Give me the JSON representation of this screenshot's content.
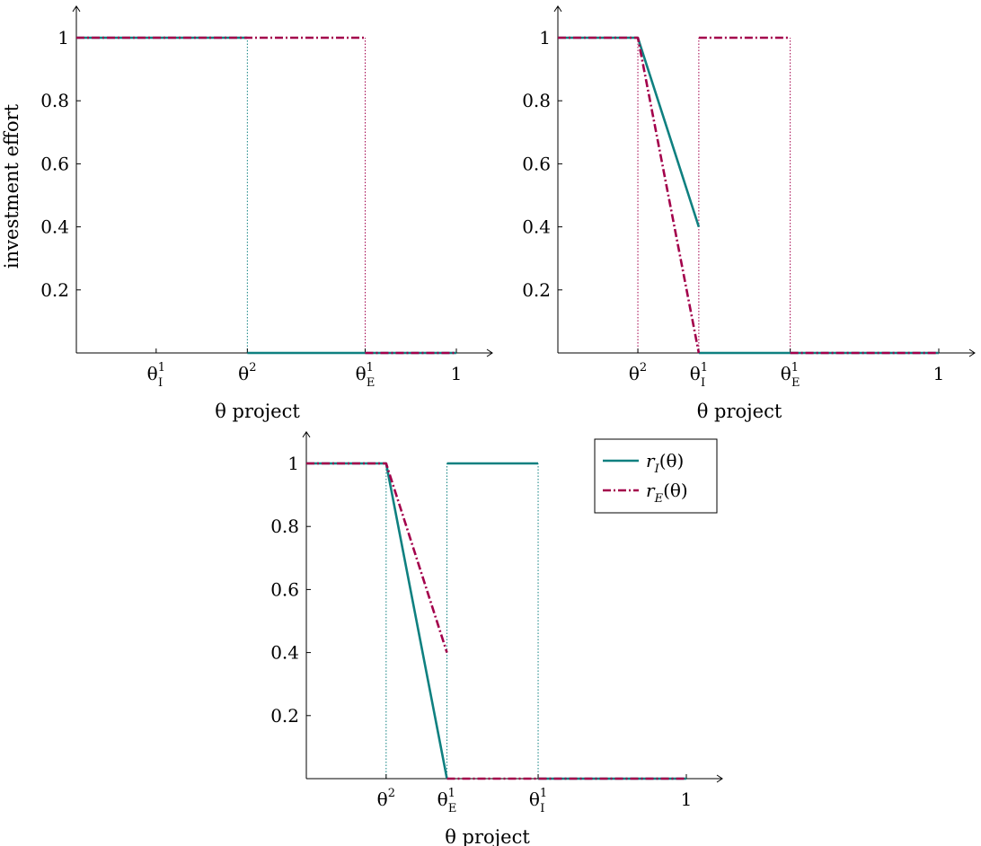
{
  "colors": {
    "rI": "#0f8080",
    "rE": "#a3004b",
    "axis": "#000000"
  },
  "legend": {
    "entries": [
      {
        "series": "rI",
        "label": "r",
        "sub": "I",
        "tail": "(θ)"
      },
      {
        "series": "rE",
        "label": "r",
        "sub": "E",
        "tail": "(θ)"
      }
    ]
  },
  "chart_data": [
    {
      "type": "line",
      "xlabel": "θ project",
      "ylabel": "investment effort",
      "ylim": [
        0,
        1.1
      ],
      "xlim": [
        0,
        1
      ],
      "yticks": [
        "0.2",
        "0.4",
        "0.6",
        "0.8",
        "1"
      ],
      "ytick_values": [
        0.2,
        0.4,
        0.6,
        0.8,
        1
      ],
      "xticks": [
        {
          "x": 0.21,
          "base": "θ",
          "sup": "1",
          "sub": "I"
        },
        {
          "x": 0.45,
          "base": "θ",
          "sup": "2",
          "sub": ""
        },
        {
          "x": 0.76,
          "base": "θ",
          "sup": "1",
          "sub": "E"
        },
        {
          "x": 1.0,
          "base": "1",
          "sup": "",
          "sub": ""
        }
      ],
      "guides": [
        {
          "series": "rI",
          "x": 0.45,
          "y": 1
        },
        {
          "series": "rE",
          "x": 0.76,
          "y": 1
        }
      ],
      "series": [
        {
          "key": "rI",
          "segments": [
            [
              [
                0,
                1
              ],
              [
                0.45,
                1
              ]
            ],
            [
              [
                0.45,
                0
              ],
              [
                1,
                0
              ]
            ]
          ]
        },
        {
          "key": "rE",
          "segments": [
            [
              [
                0,
                1
              ],
              [
                0.76,
                1
              ]
            ],
            [
              [
                0.76,
                0
              ],
              [
                1,
                0
              ]
            ]
          ]
        }
      ]
    },
    {
      "type": "line",
      "xlabel": "θ project",
      "ylabel": "",
      "ylim": [
        0,
        1.1
      ],
      "xlim": [
        0,
        1
      ],
      "yticks": [
        "0.2",
        "0.4",
        "0.6",
        "0.8",
        "1"
      ],
      "ytick_values": [
        0.2,
        0.4,
        0.6,
        0.8,
        1
      ],
      "xticks": [
        {
          "x": 0.21,
          "base": "θ",
          "sup": "2",
          "sub": ""
        },
        {
          "x": 0.37,
          "base": "θ",
          "sup": "1",
          "sub": "I"
        },
        {
          "x": 0.61,
          "base": "θ",
          "sup": "1",
          "sub": "E"
        },
        {
          "x": 1.0,
          "base": "1",
          "sup": "",
          "sub": ""
        }
      ],
      "guides": [
        {
          "series": "rE",
          "x": 0.21,
          "y": 1
        },
        {
          "series": "rE",
          "x": 0.37,
          "y": 1
        },
        {
          "series": "rE",
          "x": 0.61,
          "y": 1
        }
      ],
      "series": [
        {
          "key": "rI",
          "segments": [
            [
              [
                0,
                1
              ],
              [
                0.21,
                1
              ],
              [
                0.37,
                0.4
              ]
            ],
            [
              [
                0.37,
                0
              ],
              [
                1,
                0
              ]
            ]
          ]
        },
        {
          "key": "rE",
          "segments": [
            [
              [
                0,
                1
              ],
              [
                0.21,
                1
              ],
              [
                0.37,
                0
              ]
            ],
            [
              [
                0.37,
                1
              ],
              [
                0.61,
                1
              ]
            ],
            [
              [
                0.61,
                0
              ],
              [
                1,
                0
              ]
            ]
          ]
        }
      ]
    },
    {
      "type": "line",
      "xlabel": "θ project",
      "ylabel": "",
      "ylim": [
        0,
        1.1
      ],
      "xlim": [
        0,
        1
      ],
      "yticks": [
        "0.2",
        "0.4",
        "0.6",
        "0.8",
        "1"
      ],
      "ytick_values": [
        0.2,
        0.4,
        0.6,
        0.8,
        1
      ],
      "xticks": [
        {
          "x": 0.21,
          "base": "θ",
          "sup": "2",
          "sub": ""
        },
        {
          "x": 0.37,
          "base": "θ",
          "sup": "1",
          "sub": "E"
        },
        {
          "x": 0.61,
          "base": "θ",
          "sup": "1",
          "sub": "I"
        },
        {
          "x": 1.0,
          "base": "1",
          "sup": "",
          "sub": ""
        }
      ],
      "guides": [
        {
          "series": "rI",
          "x": 0.21,
          "y": 1
        },
        {
          "series": "rI",
          "x": 0.37,
          "y": 1
        },
        {
          "series": "rI",
          "x": 0.61,
          "y": 1
        }
      ],
      "series": [
        {
          "key": "rI",
          "segments": [
            [
              [
                0,
                1
              ],
              [
                0.21,
                1
              ],
              [
                0.37,
                0
              ]
            ],
            [
              [
                0.37,
                1
              ],
              [
                0.61,
                1
              ]
            ],
            [
              [
                0.61,
                0
              ],
              [
                1,
                0
              ]
            ]
          ]
        },
        {
          "key": "rE",
          "segments": [
            [
              [
                0,
                1
              ],
              [
                0.21,
                1
              ],
              [
                0.37,
                0.4
              ]
            ],
            [
              [
                0.37,
                0
              ],
              [
                1,
                0
              ]
            ]
          ]
        }
      ]
    }
  ]
}
